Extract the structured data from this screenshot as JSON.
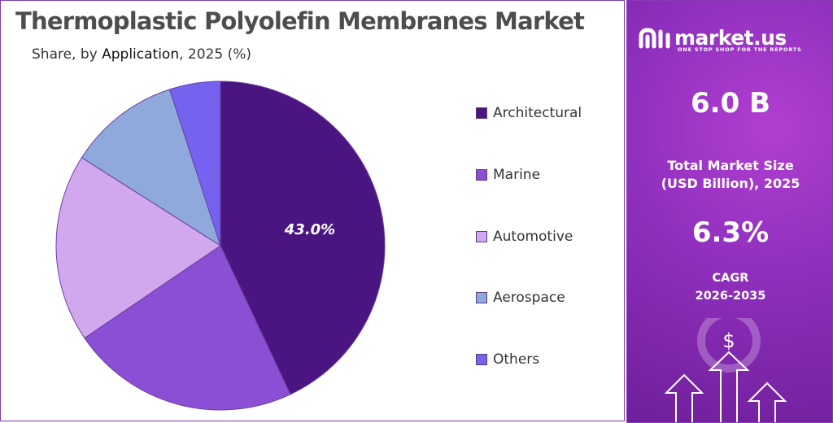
{
  "title": "Thermoplastic Polyolefin Membranes Market",
  "subtitle": {
    "prefix": "Share, by ",
    "highlight": "Application",
    "suffix": ", 2025 (%)"
  },
  "chart_data": {
    "type": "pie",
    "categories": [
      "Architectural",
      "Marine",
      "Automotive",
      "Aerospace",
      "Others"
    ],
    "values": [
      43.0,
      22.5,
      18.5,
      11.0,
      5.0
    ],
    "data_labels": [
      "43.0%"
    ],
    "colors": [
      "#4a1580",
      "#8a4fd4",
      "#d1a8ee",
      "#8fa9dd",
      "#7563f0"
    ],
    "legend_position": "right"
  },
  "brand": {
    "name": "market.us",
    "tagline": "ONE STOP SHOP FOR THE REPORTS"
  },
  "stats": {
    "market_size_value": "6.0 B",
    "market_size_label_line1": "Total Market Size",
    "market_size_label_line2": "(USD Billion), 2025",
    "cagr_value": "6.3%",
    "cagr_label_line1": "CAGR",
    "cagr_label_line2": "2026-2035",
    "dollar_symbol": "$"
  }
}
